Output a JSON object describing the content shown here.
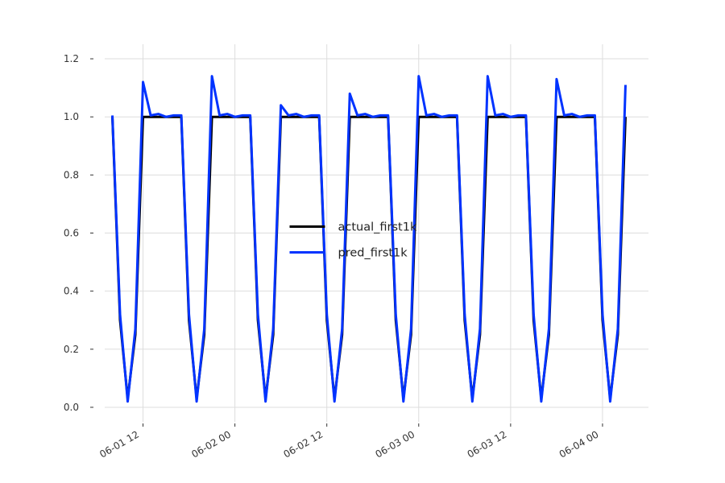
{
  "chart_data": {
    "type": "line",
    "x": [
      "06-01 08",
      "06-01 09",
      "06-01 10",
      "06-01 11",
      "06-01 12",
      "06-01 13",
      "06-01 14",
      "06-01 15",
      "06-01 16",
      "06-01 17",
      "06-01 18",
      "06-01 19",
      "06-01 20",
      "06-01 21",
      "06-01 22",
      "06-01 23",
      "06-02 00",
      "06-02 01",
      "06-02 02",
      "06-02 03",
      "06-02 04",
      "06-02 05",
      "06-02 06",
      "06-02 07",
      "06-02 08",
      "06-02 09",
      "06-02 10",
      "06-02 11",
      "06-02 12",
      "06-02 13",
      "06-02 14",
      "06-02 15",
      "06-02 16",
      "06-02 17",
      "06-02 18",
      "06-02 19",
      "06-02 20",
      "06-02 21",
      "06-02 22",
      "06-02 23",
      "06-03 00",
      "06-03 01",
      "06-03 02",
      "06-03 03",
      "06-03 04",
      "06-03 05",
      "06-03 06",
      "06-03 07",
      "06-03 08",
      "06-03 09",
      "06-03 10",
      "06-03 11",
      "06-03 12",
      "06-03 13",
      "06-03 14",
      "06-03 15",
      "06-03 16",
      "06-03 17",
      "06-03 18",
      "06-03 19",
      "06-03 20",
      "06-03 21",
      "06-03 22",
      "06-03 23",
      "06-04 00",
      "06-04 01",
      "06-04 02",
      "06-04 03"
    ],
    "series": [
      {
        "name": "actual_first1k",
        "color": "#000000",
        "values": [
          1.0,
          0.3,
          0.03,
          0.25,
          1.0,
          1.0,
          1.0,
          1.0,
          1.0,
          1.0,
          0.3,
          0.03,
          0.25,
          1.0,
          1.0,
          1.0,
          1.0,
          1.0,
          1.0,
          0.3,
          0.03,
          0.25,
          1.0,
          1.0,
          1.0,
          1.0,
          1.0,
          1.0,
          0.3,
          0.03,
          0.25,
          1.0,
          1.0,
          1.0,
          1.0,
          1.0,
          1.0,
          0.3,
          0.03,
          0.25,
          1.0,
          1.0,
          1.0,
          1.0,
          1.0,
          1.0,
          0.3,
          0.03,
          0.25,
          1.0,
          1.0,
          1.0,
          1.0,
          1.0,
          1.0,
          0.3,
          0.03,
          0.25,
          1.0,
          1.0,
          1.0,
          1.0,
          1.0,
          1.0,
          0.3,
          0.03,
          0.25,
          1.0
        ]
      },
      {
        "name": "pred_first1k",
        "color": "#0033ff",
        "values": [
          1.005,
          0.32,
          0.02,
          0.27,
          1.12,
          1.005,
          1.01,
          1.0,
          1.005,
          1.005,
          0.32,
          0.02,
          0.27,
          1.14,
          1.005,
          1.01,
          1.0,
          1.005,
          1.005,
          0.32,
          0.02,
          0.27,
          1.04,
          1.005,
          1.01,
          1.0,
          1.005,
          1.005,
          0.32,
          0.02,
          0.27,
          1.08,
          1.005,
          1.01,
          1.0,
          1.005,
          1.005,
          0.32,
          0.02,
          0.27,
          1.14,
          1.005,
          1.01,
          1.0,
          1.005,
          1.005,
          0.32,
          0.02,
          0.27,
          1.14,
          1.005,
          1.01,
          1.0,
          1.005,
          1.005,
          0.32,
          0.02,
          0.27,
          1.13,
          1.005,
          1.01,
          1.0,
          1.005,
          1.005,
          0.32,
          0.02,
          0.27,
          1.11
        ]
      }
    ],
    "xlim": [
      "06-01 07",
      "06-04 06"
    ],
    "xticks": [
      "06-01 12",
      "06-02 00",
      "06-02 12",
      "06-03 00",
      "06-03 12",
      "06-04 00"
    ],
    "ylim": [
      -0.05,
      1.25
    ],
    "yticks": [
      {
        "value": 0,
        "label": "0.0"
      },
      0.2,
      0.4,
      0.6,
      0.8,
      {
        "value": 1,
        "label": "1.0"
      },
      1.2
    ],
    "grid": true,
    "legend": "center"
  }
}
